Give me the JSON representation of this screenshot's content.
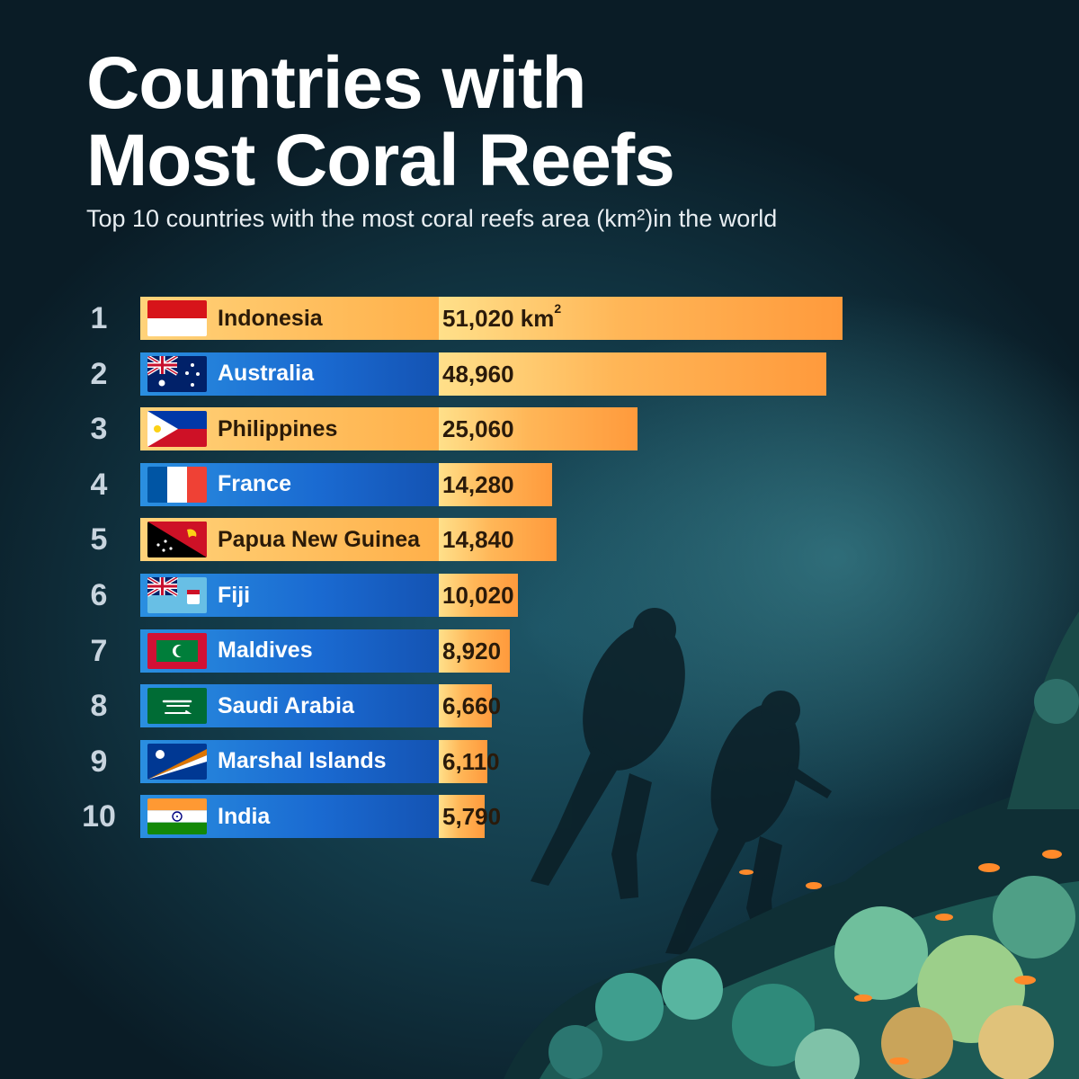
{
  "header": {
    "title_line1": "Countries with",
    "title_line2": "Most Coral Reefs",
    "subtitle": "Top 10 countries with the most coral reefs area (km²)in the world"
  },
  "colors": {
    "orange_label": "#ffb04a",
    "blue_label": "#1a6ad1",
    "bar": "#ff9a3c",
    "background": "#123846"
  },
  "chart_data": {
    "type": "bar",
    "orientation": "horizontal",
    "title": "Countries with Most Coral Reefs",
    "subtitle": "Top 10 countries with the most coral reefs area (km²)in the world",
    "unit": "km²",
    "xlim": [
      0,
      51020
    ],
    "categories": [
      "Indonesia",
      "Australia",
      "Philippines",
      "France",
      "Papua New Guinea",
      "Fiji",
      "Maldives",
      "Saudi Arabia",
      "Marshal Islands",
      "India"
    ],
    "values": [
      51020,
      48960,
      25060,
      14280,
      14840,
      10020,
      8920,
      6660,
      6110,
      5790
    ],
    "ranks": [
      "1",
      "2",
      "3",
      "4",
      "5",
      "6",
      "7",
      "8",
      "9",
      "10"
    ],
    "value_labels": [
      "51,020 km",
      "48,960",
      "25,060",
      "14,280",
      "14,840",
      "10,020",
      "8,920",
      "6,660",
      "6,110",
      "5,790"
    ],
    "first_label_superscript": "2",
    "label_style": [
      "orange",
      "blue",
      "orange",
      "blue",
      "orange",
      "blue",
      "blue",
      "blue",
      "blue",
      "blue"
    ],
    "flag_icons": [
      "indonesia-flag-icon",
      "australia-flag-icon",
      "philippines-flag-icon",
      "france-flag-icon",
      "papua-new-guinea-flag-icon",
      "fiji-flag-icon",
      "maldives-flag-icon",
      "saudi-arabia-flag-icon",
      "marshall-islands-flag-icon",
      "india-flag-icon"
    ]
  }
}
